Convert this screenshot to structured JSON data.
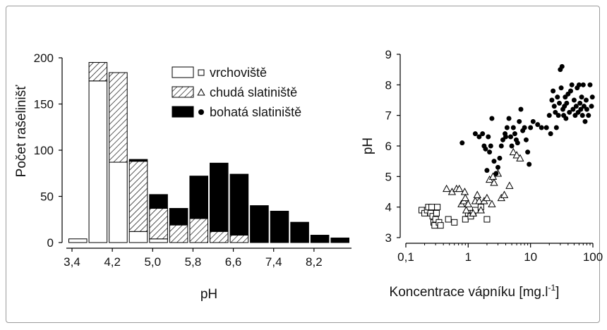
{
  "chart_data": [
    {
      "type": "bar",
      "stacked": true,
      "ylabel": "Počet rašelinišť",
      "xlabel": "pH",
      "ylim": [
        0,
        200
      ],
      "yticks": [
        0,
        50,
        100,
        150,
        200
      ],
      "xtick_labels": [
        "3,4",
        "4,2",
        "5,0",
        "5,8",
        "6,6",
        "7,4",
        "8,2"
      ],
      "bin_start": 3.4,
      "bin_width": 0.2,
      "legend_position": "top-right",
      "series": [
        {
          "name": "vrchoviště",
          "marker": "square",
          "fill": "#ffffff",
          "values": [
            4,
            175,
            87,
            12,
            4,
            0,
            0,
            0,
            0,
            0,
            0,
            0,
            0,
            0
          ]
        },
        {
          "name": "chudá slatiniště",
          "marker": "triangle",
          "fill": "hatch",
          "values": [
            0,
            20,
            97,
            76,
            33,
            19,
            26,
            12,
            8,
            0,
            0,
            0,
            0,
            0
          ]
        },
        {
          "name": "bohatá slatiniště",
          "marker": "circle",
          "fill": "#000000",
          "values": [
            0,
            0,
            0,
            2,
            15,
            18,
            46,
            74,
            66,
            40,
            34,
            22,
            8,
            5
          ]
        }
      ]
    },
    {
      "type": "scatter",
      "xscale": "log",
      "xlabel": "Koncentrace vápníku [mg.l",
      "xlabel_sup": "-1",
      "xlabel_end": "]",
      "ylabel": "pH",
      "xlim": [
        0.1,
        100
      ],
      "ylim": [
        3,
        9
      ],
      "xticks": [
        0.1,
        1,
        10,
        100
      ],
      "xtick_labels": [
        "0,1",
        "1",
        "10",
        "100"
      ],
      "yticks": [
        3,
        4,
        5,
        6,
        7,
        8,
        9
      ],
      "series": [
        {
          "name": "vrchoviště",
          "marker": "square",
          "points": [
            [
              0.18,
              3.9
            ],
            [
              0.2,
              3.8
            ],
            [
              0.22,
              3.9
            ],
            [
              0.23,
              4.0
            ],
            [
              0.25,
              3.8
            ],
            [
              0.26,
              4.0
            ],
            [
              0.27,
              3.7
            ],
            [
              0.28,
              3.5
            ],
            [
              0.29,
              3.4
            ],
            [
              0.3,
              3.6
            ],
            [
              0.31,
              3.8
            ],
            [
              0.32,
              4.0
            ],
            [
              0.34,
              3.5
            ],
            [
              0.36,
              3.4
            ],
            [
              0.48,
              3.6
            ],
            [
              0.6,
              3.5
            ],
            [
              0.9,
              3.6
            ],
            [
              1.0,
              3.8
            ],
            [
              1.1,
              3.7
            ],
            [
              1.2,
              3.8
            ],
            [
              1.3,
              3.9
            ],
            [
              1.6,
              4.0
            ],
            [
              2.0,
              3.6
            ]
          ]
        },
        {
          "name": "chudá slatiniště",
          "marker": "triangle",
          "points": [
            [
              0.45,
              4.6
            ],
            [
              0.55,
              4.5
            ],
            [
              0.65,
              4.6
            ],
            [
              0.72,
              4.6
            ],
            [
              0.78,
              4.1
            ],
            [
              0.85,
              4.2
            ],
            [
              0.88,
              4.5
            ],
            [
              0.9,
              4.3
            ],
            [
              0.93,
              3.9
            ],
            [
              1.0,
              4.1
            ],
            [
              1.2,
              3.8
            ],
            [
              1.3,
              4.2
            ],
            [
              1.4,
              4.4
            ],
            [
              1.5,
              4.2
            ],
            [
              1.6,
              3.9
            ],
            [
              1.8,
              4.2
            ],
            [
              2.0,
              4.3
            ],
            [
              2.2,
              4.9
            ],
            [
              2.4,
              4.1
            ],
            [
              2.5,
              5.0
            ],
            [
              2.6,
              4.8
            ],
            [
              3.0,
              5.1
            ],
            [
              3.4,
              4.3
            ],
            [
              3.8,
              4.4
            ],
            [
              4.6,
              4.7
            ],
            [
              5.3,
              5.8
            ],
            [
              6.0,
              5.7
            ],
            [
              6.8,
              5.6
            ]
          ]
        },
        {
          "name": "bohatá slatiniště",
          "marker": "circle",
          "points": [
            [
              0.8,
              6.1
            ],
            [
              1.3,
              6.4
            ],
            [
              1.5,
              6.3
            ],
            [
              1.7,
              6.4
            ],
            [
              1.8,
              6.0
            ],
            [
              1.9,
              5.9
            ],
            [
              2.0,
              5.2
            ],
            [
              2.1,
              6.3
            ],
            [
              2.2,
              5.8
            ],
            [
              2.3,
              6.0
            ],
            [
              2.4,
              6.9
            ],
            [
              2.6,
              5.5
            ],
            [
              2.8,
              5.1
            ],
            [
              3.0,
              5.3
            ],
            [
              3.2,
              5.6
            ],
            [
              3.4,
              6.0
            ],
            [
              3.6,
              6.2
            ],
            [
              3.9,
              6.4
            ],
            [
              4.0,
              6.3
            ],
            [
              4.2,
              6.6
            ],
            [
              4.5,
              6.9
            ],
            [
              4.8,
              6.3
            ],
            [
              5.0,
              6.0
            ],
            [
              5.3,
              6.6
            ],
            [
              5.6,
              6.4
            ],
            [
              5.9,
              6.2
            ],
            [
              6.2,
              6.1
            ],
            [
              6.6,
              6.8
            ],
            [
              7.0,
              7.2
            ],
            [
              7.5,
              6.5
            ],
            [
              8.0,
              6.6
            ],
            [
              8.5,
              6.2
            ],
            [
              9.0,
              5.8
            ],
            [
              9.5,
              5.4
            ],
            [
              10,
              6.6
            ],
            [
              11,
              6.8
            ],
            [
              13,
              6.7
            ],
            [
              15,
              6.6
            ],
            [
              18,
              6.6
            ],
            [
              20,
              7.0
            ],
            [
              21,
              6.4
            ],
            [
              22,
              7.5
            ],
            [
              23,
              7.8
            ],
            [
              24,
              7.3
            ],
            [
              25,
              7.1
            ],
            [
              26,
              6.6
            ],
            [
              27,
              7.6
            ],
            [
              28,
              7.0
            ],
            [
              29,
              7.4
            ],
            [
              30,
              8.5
            ],
            [
              31,
              7.9
            ],
            [
              32,
              8.6
            ],
            [
              33,
              7.2
            ],
            [
              34,
              7.0
            ],
            [
              35,
              7.3
            ],
            [
              36,
              7.6
            ],
            [
              37,
              6.9
            ],
            [
              38,
              7.4
            ],
            [
              40,
              7.7
            ],
            [
              42,
              7.1
            ],
            [
              44,
              7.8
            ],
            [
              46,
              8.0
            ],
            [
              48,
              7.2
            ],
            [
              50,
              7.5
            ],
            [
              52,
              7.0
            ],
            [
              54,
              7.3
            ],
            [
              56,
              7.9
            ],
            [
              58,
              7.1
            ],
            [
              60,
              8.0
            ],
            [
              62,
              7.4
            ],
            [
              64,
              7.2
            ],
            [
              66,
              7.6
            ],
            [
              68,
              7.0
            ],
            [
              70,
              8.0
            ],
            [
              72,
              7.3
            ],
            [
              75,
              6.8
            ],
            [
              78,
              7.5
            ],
            [
              80,
              7.2
            ],
            [
              85,
              7.0
            ],
            [
              90,
              8.0
            ],
            [
              95,
              7.3
            ],
            [
              98,
              7.6
            ]
          ]
        }
      ]
    }
  ]
}
